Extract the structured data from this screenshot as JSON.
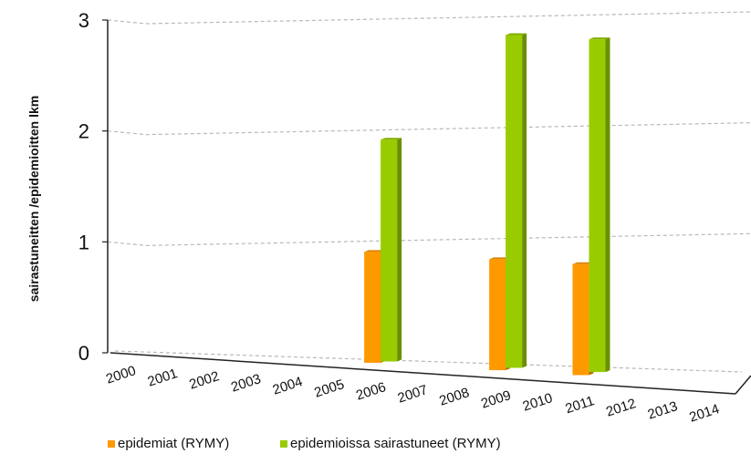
{
  "chart_data": {
    "type": "bar",
    "title": "",
    "xlabel": "",
    "ylabel": "sairastuneitten /epidemioitten lkm",
    "categories": [
      "2000",
      "2001",
      "2002",
      "2003",
      "2004",
      "2005",
      "2006",
      "2007",
      "2008",
      "2009",
      "2010",
      "2011",
      "2012",
      "2013",
      "2014"
    ],
    "ylim": [
      0,
      3
    ],
    "yticks": [
      "0",
      "1",
      "2",
      "3"
    ],
    "grid": true,
    "legend_position": "bottom",
    "series": [
      {
        "name": "epidemiat (RYMY)",
        "color": "#ff9900",
        "values": [
          0,
          0,
          0,
          0,
          0,
          0,
          1,
          0,
          0,
          1,
          0,
          1,
          0,
          0,
          0
        ]
      },
      {
        "name": "epidemioissa sairastuneet (RYMY)",
        "color": "#99cc00",
        "values": [
          0,
          0,
          0,
          0,
          0,
          0,
          2,
          0,
          0,
          3,
          0,
          3,
          0,
          0,
          0
        ]
      }
    ]
  }
}
